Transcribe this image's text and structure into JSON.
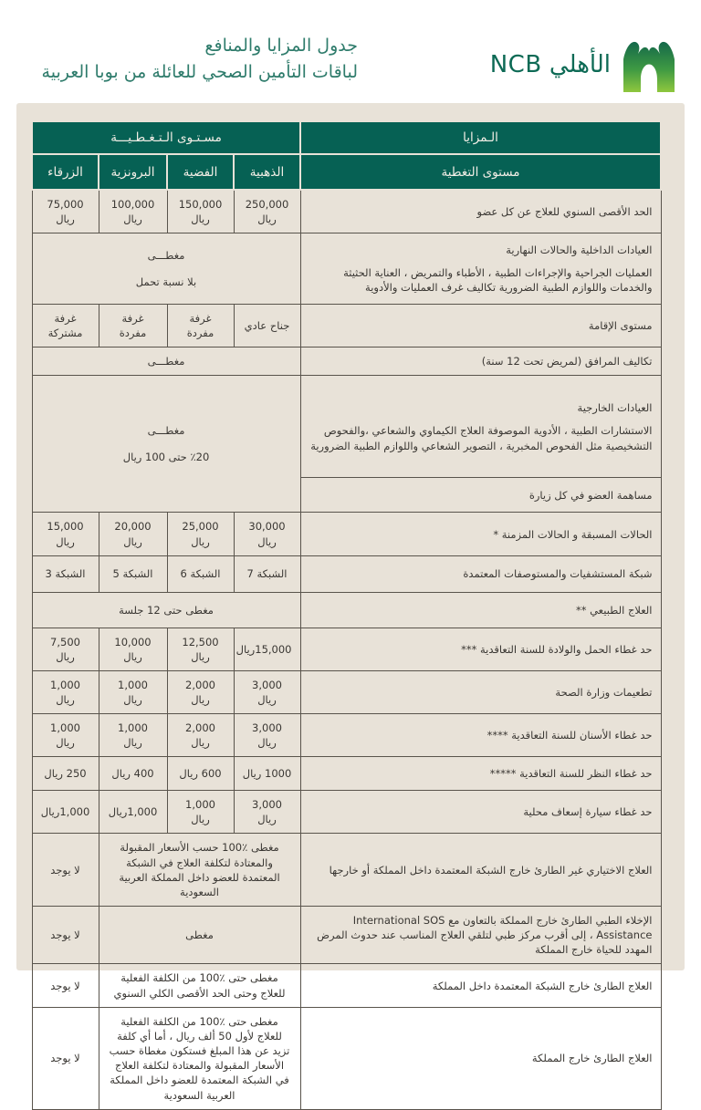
{
  "colors": {
    "header-green": "#066154",
    "panel-beige": "#e8e2d8",
    "title-green": "#2f7c6c",
    "logo-green": "#0d6a55",
    "text-dark": "#3a3733",
    "logo-gradient-top": "#14684a",
    "logo-gradient-bottom": "#8fc73e"
  },
  "page": {
    "title_line1": "جدول المزايا والمنافع",
    "title_line2": "لباقات التأمين الصحي للعائلة من بوبا العربية",
    "brand_text": "الأهلي NCB"
  },
  "table": {
    "header": {
      "benefits": "الـمزايا",
      "coverage_group": "مسـتـوى الـتـغـطـيـــة",
      "coverage_level": "مستوى التغطية",
      "tiers": [
        "الذهبية",
        "الفضية",
        "البرونزية",
        "الزرقاء"
      ]
    },
    "rows": [
      {
        "type": "values",
        "benefit": "الحد الأقصى السنوي للعلاج عن كل عضو",
        "cells": [
          "250,000 ريال",
          "150,000 ريال",
          "100,000 ريال",
          "75,000 ريال"
        ]
      },
      {
        "type": "span4",
        "benefit_title": "العيادات الداخلية  والحالات النهارية",
        "benefit_body": "العمليات الجراحية والإجراءات الطبية ، الأطباء والتمريض ، العناية الحثيثة والخدمات واللوازم الطبية الضرورية تكاليف غرف العمليات والأدوية",
        "value_lines": [
          "مغطـــى",
          "بلا نسبة تحمل"
        ]
      },
      {
        "type": "values",
        "benefit": "مستوى الإقامة",
        "cells": [
          "جناح عادي",
          "غرفة مفردة",
          "غرفة مفردة",
          "غرفة مشتركة"
        ]
      },
      {
        "type": "span4",
        "benefit": "تكاليف المرافق (لمريض تحت 12 سنة)",
        "value_lines": [
          "مغطـــى"
        ]
      },
      {
        "type": "group2",
        "benefit_title": "العيادات الخارجية",
        "benefit_body": "الاستشارات الطبية ، الأدوية الموصوفة العلاج الكيماوي والشعاعي ،والفحوص التشخيصية مثل  الفحوص المخبرية ، التصوير الشعاعي واللوازم الطبية الضرورية",
        "benefit2": "مساهمة العضو في كل زيارة",
        "value_lines": [
          "مغطـــى",
          "٪20 حتى 100 ريال"
        ]
      },
      {
        "type": "values",
        "benefit": "الحالات المسبقة و الحالات المزمنة *",
        "cells": [
          "30,000 ريال",
          "25,000 ريال",
          "20,000 ريال",
          "15,000 ريال"
        ]
      },
      {
        "type": "values",
        "benefit": "شبكة المستشفيات والمستوصفات المعتمدة",
        "cells": [
          "الشبكة 7",
          "الشبكة 6",
          "الشبكة 5",
          "الشبكة 3"
        ]
      },
      {
        "type": "span4",
        "benefit": "العلاج الطبيعي **",
        "value_lines": [
          "مغطى حتى 12 جلسة"
        ]
      },
      {
        "type": "values",
        "benefit": "حد غطاء الحمل والولادة  للسنة التعاقدية ***",
        "cells": [
          "15,000ريال",
          "12,500 ريال",
          "10,000 ريال",
          "7,500 ريال"
        ]
      },
      {
        "type": "values",
        "benefit": "تطعيمات وزارة الصحة",
        "cells": [
          "3,000 ريال",
          "2,000 ريال",
          "1,000 ريال",
          "1,000 ريال"
        ]
      },
      {
        "type": "values",
        "benefit": "حد غطاء الأسنان للسنة التعاقدية ****",
        "cells": [
          "3,000 ريال",
          "2,000 ريال",
          "1,000 ريال",
          "1,000 ريال"
        ]
      },
      {
        "type": "values",
        "benefit": "حد غطاء النظر للسنة التعاقدية *****",
        "cells": [
          "1000 ريال",
          "600 ريال",
          "400 ريال",
          "250 ريال"
        ]
      },
      {
        "type": "values",
        "benefit": "حد غطاء سيارة إسعاف محلية",
        "cells": [
          "3,000 ريال",
          "1,000 ريال",
          "1,000ريال",
          "1,000ريال"
        ]
      },
      {
        "type": "span3",
        "benefit": "العلاج الاختياري غير الطارئ خارج الشبكة المعتمدة داخل المملكة أو خارجها",
        "value": "مغطى ٪100 حسب الأسعار المقبولة والمعتادة لتكلفة العلاج في الشبكة المعتمدة للعضو داخل المملكة العربية السعودية",
        "blue": "لا يوجد"
      },
      {
        "type": "span3",
        "benefit": "الإخلاء الطبي الطارئ خارج المملكة بالتعاون مع International SOS Assistance ، إلى أقرب مركز طبي لتلقي العلاج المناسب عند حدوث المرض  المهدد للحياة خارج المملكة",
        "value": "مغطى",
        "blue": "لا يوجد"
      },
      {
        "type": "span3",
        "benefit": "العلاج الطارئ خارج الشبكة المعتمدة داخل المملكة",
        "value": "مغطى حتى ٪100 من الكلفة الفعلية للعلاج وحتى الحد الأقصى الكلي السنوي",
        "blue": "لا يوجد"
      },
      {
        "type": "span3",
        "benefit": "العلاج الطارئ خارج المملكة",
        "value": "مغطى حتى ٪100 من الكلفة الفعلية للعلاج لأول 50 ألف ريال ، أما أي كلفة تزيد عن هذا المبلغ فستكون مغطاة حسب الأسعار المقبولة والمعتادة لتكلفة العلاج في الشبكة المعتمدة للعضو داخل المملكة العربية السعودية",
        "blue": "لا يوجد"
      }
    ]
  }
}
